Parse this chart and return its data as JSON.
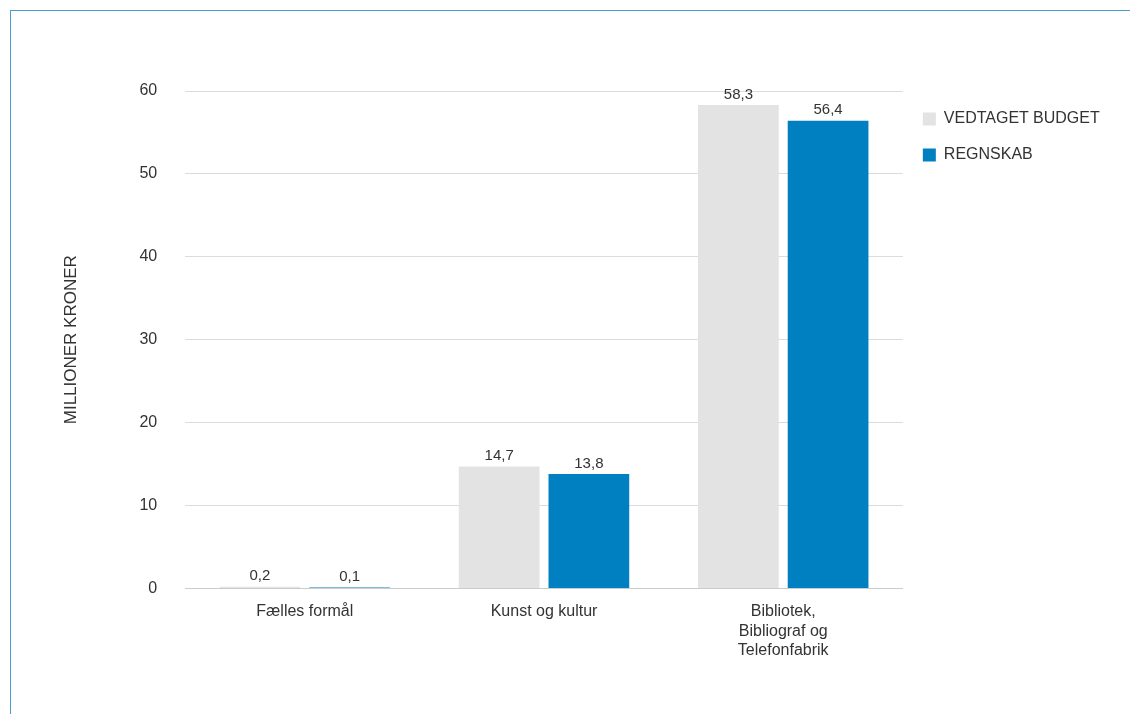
{
  "chart_data": {
    "type": "bar",
    "ylabel": "MILLIONER KRONER",
    "categories": [
      "Fælles formål",
      "Kunst og kultur",
      "Bibliotek, Bibliograf og Telefonfabrik"
    ],
    "series": [
      {
        "name": "VEDTAGET BUDGET",
        "color": "#e3e3e3",
        "values": [
          0.2,
          14.7,
          58.3
        ],
        "value_labels": [
          "0,2",
          "14,7",
          "58,3"
        ]
      },
      {
        "name": "REGNSKAB",
        "color": "#0080c0",
        "values": [
          0.1,
          13.8,
          56.4
        ],
        "value_labels": [
          "0,1",
          "13,8",
          "56,4"
        ]
      }
    ],
    "ylim": [
      0,
      60
    ],
    "yticks": [
      0,
      10,
      20,
      30,
      40,
      50,
      60
    ],
    "grid": "y",
    "legend": "top right"
  }
}
